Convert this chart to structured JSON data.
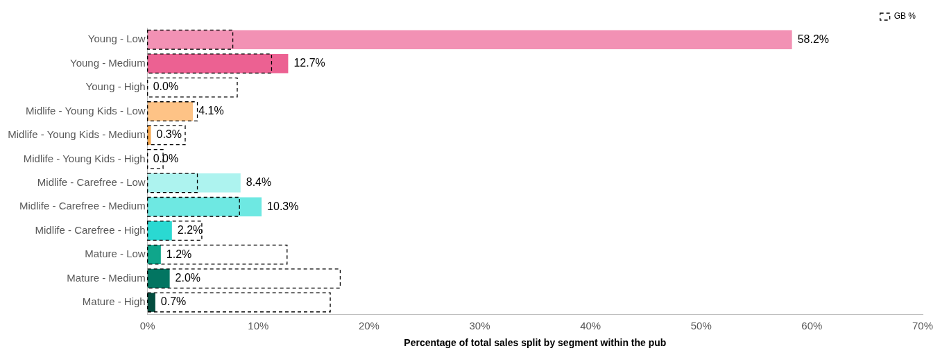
{
  "chart_data": {
    "type": "bar",
    "orientation": "horizontal",
    "xlabel": "Percentage of total sales split by segment within the pub",
    "categories": [
      "Young - Low",
      "Young - Medium",
      "Young - High",
      "Midlife - Young Kids - Low",
      "Midlife - Young Kids - Medium",
      "Midlife - Young Kids - High",
      "Midlife - Carefree - Low",
      "Midlife - Carefree - Medium",
      "Midlife - Carefree - High",
      "Mature - Low",
      "Mature - Medium",
      "Mature - High"
    ],
    "series": [
      {
        "values": [
          58.2,
          12.7,
          0.0,
          4.1,
          0.3,
          0.0,
          8.4,
          10.3,
          2.2,
          1.2,
          2.0,
          0.7
        ],
        "colors": [
          "#f291b4",
          "#ec6192",
          "#ec6192",
          "#fec386",
          "#f5a54a",
          "#f5a54a",
          "#adf3ef",
          "#6ee8e2",
          "#2ad9d2",
          "#0fa68b",
          "#027561",
          "#034d3f"
        ],
        "value_labels": [
          "58.2%",
          "12.7%",
          "0.0%",
          "4.1%",
          "0.3%",
          "0.0%",
          "8.4%",
          "10.3%",
          "2.2%",
          "1.2%",
          "2.0%",
          "0.7%"
        ]
      },
      {
        "name": "GB %",
        "color": "#000000",
        "line_style": "dashed",
        "values": [
          7.7,
          11.2,
          8.1,
          4.5,
          3.4,
          1.4,
          4.5,
          8.3,
          4.9,
          12.6,
          17.4,
          16.5
        ]
      }
    ],
    "xlim": [
      0,
      70
    ],
    "xticks": [
      {
        "value": 0,
        "label": "0%"
      },
      {
        "value": 10,
        "label": "10%"
      },
      {
        "value": 20,
        "label": "20%"
      },
      {
        "value": 30,
        "label": "30%"
      },
      {
        "value": 40,
        "label": "40%"
      },
      {
        "value": 50,
        "label": "50%"
      },
      {
        "value": 60,
        "label": "60%"
      },
      {
        "value": 70,
        "label": "70%"
      }
    ],
    "legend": "top right",
    "grid": false
  }
}
